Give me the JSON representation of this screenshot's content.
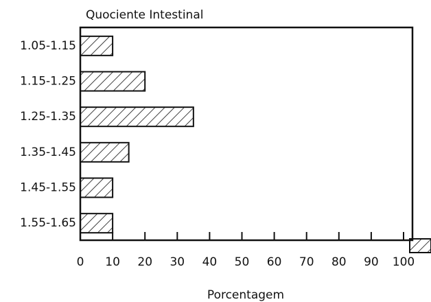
{
  "chart_data": {
    "type": "barh",
    "title": "Quociente Intestinal",
    "x_label": "Porcentagem",
    "categories": [
      "1.05-1.15",
      "1.15-1.25",
      "1.25-1.35",
      "1.35-1.45",
      "1.45-1.55",
      "1.55-1.65"
    ],
    "values": [
      10,
      20,
      35,
      15,
      10,
      10
    ],
    "color": "#111111",
    "xlim": [
      0,
      100
    ],
    "xticks": [
      0,
      10,
      20,
      30,
      40,
      50,
      60,
      70,
      80,
      90,
      100
    ]
  }
}
